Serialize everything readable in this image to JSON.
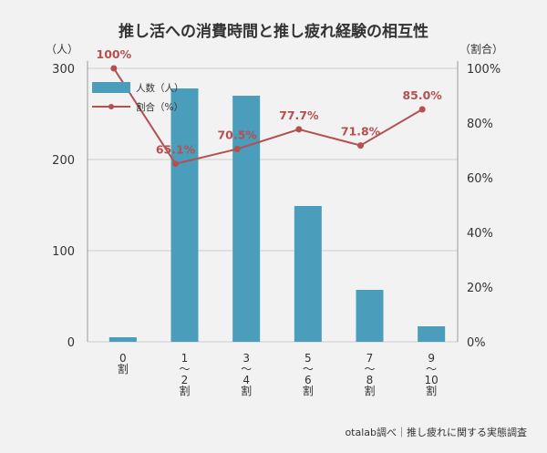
{
  "chart_data": {
    "type": "bar+line",
    "title": "推し活への消費時間と推し疲れ経験の相互性",
    "left_axis_unit": "（人）",
    "right_axis_unit": "（割合）",
    "categories": [
      [
        "0",
        "割"
      ],
      [
        "1",
        "〜",
        "2",
        "割"
      ],
      [
        "3",
        "〜",
        "4",
        "割"
      ],
      [
        "5",
        "〜",
        "6",
        "割"
      ],
      [
        "7",
        "〜",
        "8",
        "割"
      ],
      [
        "9",
        "〜",
        "10",
        "割"
      ]
    ],
    "left_ticks": [
      "0",
      "100",
      "200",
      "300"
    ],
    "right_ticks": [
      "0%",
      "20%",
      "40%",
      "60%",
      "80%",
      "100%"
    ],
    "left_ylim": [
      0,
      300
    ],
    "right_ylim": [
      0,
      100
    ],
    "series": [
      {
        "name": "人数（人）",
        "type": "bar",
        "axis": "left",
        "color": "#4a9dbb",
        "values": [
          5,
          278,
          270,
          149,
          57,
          17
        ]
      },
      {
        "name": "割合（%）",
        "type": "line",
        "axis": "right",
        "color": "#b5504f",
        "values": [
          100,
          65.1,
          70.5,
          77.7,
          71.8,
          85.0
        ],
        "labels": [
          "100%",
          "65.1%",
          "70.5%",
          "77.7%",
          "71.8%",
          "85.0%"
        ]
      }
    ],
    "legend_position": "top-left",
    "grid": "horizontal",
    "source": "otalab調べ｜推し疲れに関する実態調査"
  }
}
